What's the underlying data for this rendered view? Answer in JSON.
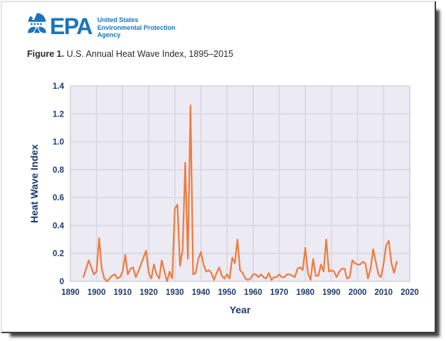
{
  "header": {
    "epa_wordmark": "EPA",
    "agency_lines": [
      "United States",
      "Environmental Protection",
      "Agency"
    ],
    "logo_color": "#1B74BB"
  },
  "figure": {
    "label": "Figure 1.",
    "title": " U.S. Annual Heat Wave Index, 1895–2015"
  },
  "chart_data": {
    "type": "line",
    "title": "U.S. Annual Heat Wave Index, 1895–2015",
    "xlabel": "Year",
    "ylabel": "Heat Wave Index",
    "xlim": [
      1890,
      2020
    ],
    "ylim": [
      0,
      1.4
    ],
    "grid": "on",
    "legend": "none",
    "x_ticks": [
      1890,
      1900,
      1910,
      1920,
      1930,
      1940,
      1950,
      1960,
      1970,
      1980,
      1990,
      2000,
      2010,
      2020
    ],
    "x_tick_labels": [
      "1890",
      "1900",
      "1910",
      "1920",
      "1930",
      "1940",
      "1950",
      "1960",
      "1970",
      "1980",
      "1990",
      "2000",
      "2010",
      "2020"
    ],
    "y_ticks": [
      0,
      0.2,
      0.4,
      0.6,
      0.8,
      1.0,
      1.2,
      1.4
    ],
    "y_tick_labels": [
      "0",
      "0.2",
      "0.4",
      "0.6",
      "0.8",
      "1.0",
      "1.2",
      "1.4"
    ],
    "plot_bg": "#ECEAF3",
    "grid_color": "#D9D6E1",
    "line_color": "#EF7B3D",
    "axis_text_color": "#1E3A6E",
    "series": [
      {
        "name": "Heat Wave Index",
        "x": [
          1895,
          1896,
          1897,
          1898,
          1899,
          1900,
          1901,
          1902,
          1903,
          1904,
          1905,
          1906,
          1907,
          1908,
          1909,
          1910,
          1911,
          1912,
          1913,
          1914,
          1915,
          1916,
          1917,
          1918,
          1919,
          1920,
          1921,
          1922,
          1923,
          1924,
          1925,
          1926,
          1927,
          1928,
          1929,
          1930,
          1931,
          1932,
          1933,
          1934,
          1935,
          1936,
          1937,
          1938,
          1939,
          1940,
          1941,
          1942,
          1943,
          1944,
          1945,
          1946,
          1947,
          1948,
          1949,
          1950,
          1951,
          1952,
          1953,
          1954,
          1955,
          1956,
          1957,
          1958,
          1959,
          1960,
          1961,
          1962,
          1963,
          1964,
          1965,
          1966,
          1967,
          1968,
          1969,
          1970,
          1971,
          1972,
          1973,
          1974,
          1975,
          1976,
          1977,
          1978,
          1979,
          1980,
          1981,
          1982,
          1983,
          1984,
          1985,
          1986,
          1987,
          1988,
          1989,
          1990,
          1991,
          1992,
          1993,
          1994,
          1995,
          1996,
          1997,
          1998,
          1999,
          2000,
          2001,
          2002,
          2003,
          2004,
          2005,
          2006,
          2007,
          2008,
          2009,
          2010,
          2011,
          2012,
          2013,
          2014,
          2015
        ],
        "y": [
          0.03,
          0.09,
          0.15,
          0.1,
          0.05,
          0.07,
          0.31,
          0.09,
          0.02,
          0.0,
          0.02,
          0.04,
          0.05,
          0.02,
          0.03,
          0.07,
          0.19,
          0.05,
          0.09,
          0.1,
          0.03,
          0.07,
          0.12,
          0.17,
          0.22,
          0.06,
          0.02,
          0.12,
          0.05,
          0.02,
          0.15,
          0.07,
          0.0,
          0.07,
          0.02,
          0.52,
          0.55,
          0.11,
          0.23,
          0.85,
          0.16,
          1.26,
          0.05,
          0.06,
          0.16,
          0.21,
          0.12,
          0.07,
          0.08,
          0.06,
          0.01,
          0.06,
          0.1,
          0.04,
          0.02,
          0.05,
          0.02,
          0.17,
          0.13,
          0.3,
          0.08,
          0.06,
          0.02,
          0.01,
          0.02,
          0.05,
          0.05,
          0.03,
          0.05,
          0.03,
          0.02,
          0.06,
          0.01,
          0.03,
          0.03,
          0.05,
          0.03,
          0.03,
          0.05,
          0.05,
          0.04,
          0.03,
          0.09,
          0.1,
          0.08,
          0.24,
          0.06,
          0.01,
          0.16,
          0.04,
          0.04,
          0.12,
          0.07,
          0.3,
          0.07,
          0.08,
          0.07,
          0.03,
          0.07,
          0.09,
          0.09,
          0.02,
          0.03,
          0.15,
          0.13,
          0.12,
          0.12,
          0.14,
          0.13,
          0.02,
          0.09,
          0.23,
          0.14,
          0.05,
          0.03,
          0.13,
          0.26,
          0.29,
          0.13,
          0.06,
          0.14
        ]
      }
    ]
  }
}
